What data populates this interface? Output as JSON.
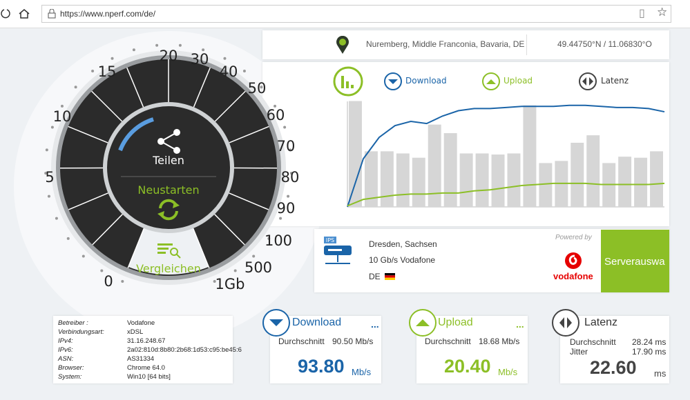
{
  "browser": {
    "url": "https://www.nperf.com/de/"
  },
  "location": {
    "place": "Nuremberg, Middle Franconia, Bavaria, DE",
    "coordinates": "49.44750°N / 11.06830°O"
  },
  "graph": {
    "legend": [
      "Download",
      "Upload",
      "Latenz"
    ],
    "latency_bars": [
      99,
      52,
      52,
      50,
      46,
      77,
      69,
      50,
      50,
      49,
      50,
      95,
      41,
      43,
      60,
      67,
      41,
      47,
      46,
      52
    ],
    "download_line": [
      0,
      45,
      65,
      76,
      80,
      78,
      85,
      90,
      92,
      92,
      93,
      94,
      94,
      94,
      95,
      95,
      94,
      93,
      93,
      92,
      89
    ],
    "upload_line": [
      1,
      7,
      9,
      11,
      12,
      12,
      13,
      13,
      15,
      16,
      18,
      20,
      21,
      22,
      22,
      22,
      21,
      21,
      21,
      21,
      22
    ]
  },
  "server": {
    "badge": "IPS",
    "city": "Dresden, Sachsen",
    "provider": "10 Gb/s Vodafone",
    "country": "DE",
    "powered_by": "Powered by",
    "brand": "vodafone",
    "select_button": "Serverauswa"
  },
  "gauge": {
    "share": "Teilen",
    "restart": "Neustarten",
    "compare": "Vergleichen",
    "scale": [
      "0",
      "5",
      "10",
      "15",
      "20",
      "30",
      "40",
      "50",
      "60",
      "70",
      "80",
      "90",
      "100",
      "500",
      "1Gb"
    ]
  },
  "info": {
    "rows": [
      [
        "Betreiber :",
        "Vodafone"
      ],
      [
        "Verbindungsart:",
        "xDSL"
      ],
      [
        "IPv4:",
        "31.16.248.67"
      ],
      [
        "IPv6:",
        "2a02:810d:8b80:2b68:1d53:c95:be45:6"
      ],
      [
        "ASN:",
        "AS31334"
      ],
      [
        "Browser:",
        "Chrome 64.0"
      ],
      [
        "System:",
        "Win10 [64 bits]"
      ]
    ]
  },
  "results": {
    "download": {
      "title": "Download",
      "more": "...",
      "average_label": "Durchschnitt",
      "average": "90.50 Mb/s",
      "value": "93.80",
      "unit": "Mb/s"
    },
    "upload": {
      "title": "Upload",
      "more": "...",
      "average_label": "Durchschnitt",
      "average": "18.68 Mb/s",
      "value": "20.40",
      "unit": "Mb/s"
    },
    "latency": {
      "title": "Latenz",
      "average_label": "Durchschnitt",
      "average": "28.24 ms",
      "jitter_label": "Jitter",
      "jitter": "17.90 ms",
      "value": "22.60",
      "unit": "ms"
    }
  }
}
